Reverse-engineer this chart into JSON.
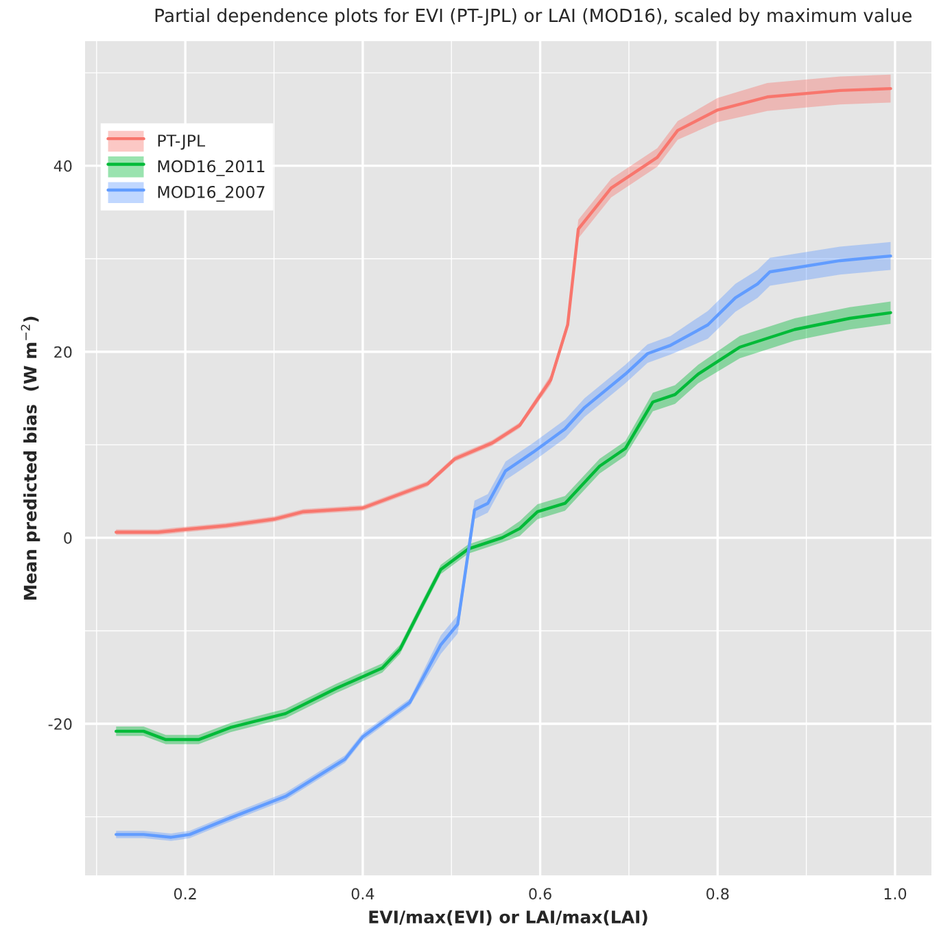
{
  "chart_data": {
    "type": "line",
    "title": "Partial dependence plots for EVI (PT-JPL) or LAI (MOD16), scaled by maximum value",
    "xlabel": "EVI/max(EVI) or LAI/max(LAI)",
    "ylabel": "Mean predicted bias  (W m$^{−2}$)",
    "series": [
      {
        "name": "PT-JPL",
        "color": "#f8766d",
        "x": [
          0.122,
          0.169,
          0.2,
          0.246,
          0.3,
          0.333,
          0.4,
          0.473,
          0.504,
          0.546,
          0.577,
          0.612,
          0.631,
          0.643,
          0.68,
          0.732,
          0.755,
          0.8,
          0.856,
          0.938,
          0.995
        ],
        "values": [
          0.6,
          0.6,
          0.9,
          1.3,
          2.0,
          2.8,
          3.2,
          5.8,
          8.5,
          10.2,
          12.1,
          17,
          22.9,
          33.2,
          37.6,
          40.9,
          43.8,
          46,
          47.4,
          48.1,
          48.3
        ],
        "lower": [
          0.3,
          0.3,
          0.6,
          1.0,
          1.7,
          2.5,
          2.9,
          5.5,
          8.2,
          9.9,
          11.8,
          16.5,
          22.4,
          32.2,
          36.6,
          39.9,
          42.8,
          44.7,
          45.9,
          46.6,
          46.8
        ],
        "upper": [
          0.9,
          0.9,
          1.2,
          1.6,
          2.3,
          3.1,
          3.5,
          6.1,
          8.8,
          10.5,
          12.4,
          17.5,
          23.4,
          34.2,
          38.6,
          41.9,
          44.8,
          47.3,
          48.9,
          49.6,
          49.8
        ]
      },
      {
        "name": "MOD16_2011",
        "color": "#00ba38",
        "x": [
          0.122,
          0.153,
          0.178,
          0.215,
          0.251,
          0.313,
          0.37,
          0.422,
          0.442,
          0.468,
          0.488,
          0.519,
          0.557,
          0.577,
          0.597,
          0.628,
          0.667,
          0.696,
          0.727,
          0.752,
          0.778,
          0.825,
          0.887,
          0.949,
          0.995
        ],
        "values": [
          -20.8,
          -20.8,
          -21.7,
          -21.7,
          -20.4,
          -18.9,
          -16.2,
          -14,
          -12,
          -7.1,
          -3.4,
          -1.2,
          0,
          1.0,
          2.8,
          3.7,
          7.7,
          9.6,
          14.6,
          15.4,
          17.6,
          20.5,
          22.4,
          23.6,
          24.2
        ],
        "lower": [
          -21.3,
          -21.3,
          -22.2,
          -22.2,
          -20.9,
          -19.4,
          -16.7,
          -14.5,
          -12.5,
          -7.6,
          -3.9,
          -1.7,
          -0.5,
          0.2,
          2.0,
          2.9,
          6.9,
          8.8,
          13.6,
          14.4,
          16.6,
          19.3,
          21.2,
          22.4,
          23.0
        ],
        "upper": [
          -20.3,
          -20.3,
          -21.2,
          -21.2,
          -19.9,
          -18.4,
          -15.7,
          -13.5,
          -11.5,
          -6.6,
          -2.9,
          -0.7,
          0.5,
          1.8,
          3.6,
          4.5,
          8.5,
          10.4,
          15.6,
          16.4,
          18.6,
          21.7,
          23.6,
          24.8,
          25.4
        ]
      },
      {
        "name": "MOD16_2007",
        "color": "#619cff",
        "x": [
          0.122,
          0.153,
          0.184,
          0.205,
          0.246,
          0.313,
          0.38,
          0.4,
          0.453,
          0.488,
          0.507,
          0.526,
          0.541,
          0.561,
          0.592,
          0.628,
          0.65,
          0.696,
          0.721,
          0.747,
          0.789,
          0.82,
          0.845,
          0.859,
          0.938,
          0.995
        ],
        "values": [
          -31.9,
          -31.9,
          -32.2,
          -31.9,
          -30.3,
          -27.8,
          -23.8,
          -21.4,
          -17.7,
          -11.5,
          -9.3,
          3,
          3.7,
          7.2,
          9.2,
          11.7,
          14,
          17.6,
          19.8,
          20.7,
          22.9,
          25.8,
          27.3,
          28.6,
          29.8,
          30.3
        ],
        "lower": [
          -32.3,
          -32.3,
          -32.6,
          -32.3,
          -30.7,
          -28.2,
          -24.2,
          -21.8,
          -18.1,
          -12.5,
          -10.3,
          2.0,
          2.7,
          6.2,
          8.2,
          10.7,
          13.0,
          16.6,
          18.8,
          19.7,
          21.4,
          24.3,
          25.8,
          27.1,
          28.3,
          28.8
        ],
        "upper": [
          -31.5,
          -31.5,
          -31.8,
          -31.5,
          -29.9,
          -27.4,
          -23.4,
          -21.0,
          -17.3,
          -10.5,
          -8.3,
          4.0,
          4.7,
          8.2,
          10.2,
          12.7,
          15.0,
          18.6,
          20.8,
          21.7,
          24.4,
          27.3,
          28.8,
          30.1,
          31.3,
          31.8
        ]
      }
    ],
    "xlim": [
      0.087,
      1.041
    ],
    "ylim": [
      -36.3,
      53.4
    ],
    "xticks": [
      {
        "value": 0.1,
        "label": null
      },
      0.2,
      {
        "value": 0.3,
        "label": null
      },
      0.4,
      {
        "value": 0.5,
        "label": null
      },
      0.6,
      {
        "value": 0.7,
        "label": null
      },
      0.8,
      {
        "value": 0.9,
        "label": null
      },
      {
        "value": 1.0,
        "label": "1.0"
      }
    ],
    "yticks": [
      {
        "value": -30,
        "label": null
      },
      -20,
      {
        "value": -10,
        "label": null
      },
      0,
      {
        "value": 10,
        "label": null
      },
      20,
      {
        "value": 30,
        "label": null
      },
      40,
      {
        "value": 50,
        "label": null
      }
    ],
    "grid": true,
    "legend": "top left",
    "marker": "none",
    "line_style": "solid"
  }
}
